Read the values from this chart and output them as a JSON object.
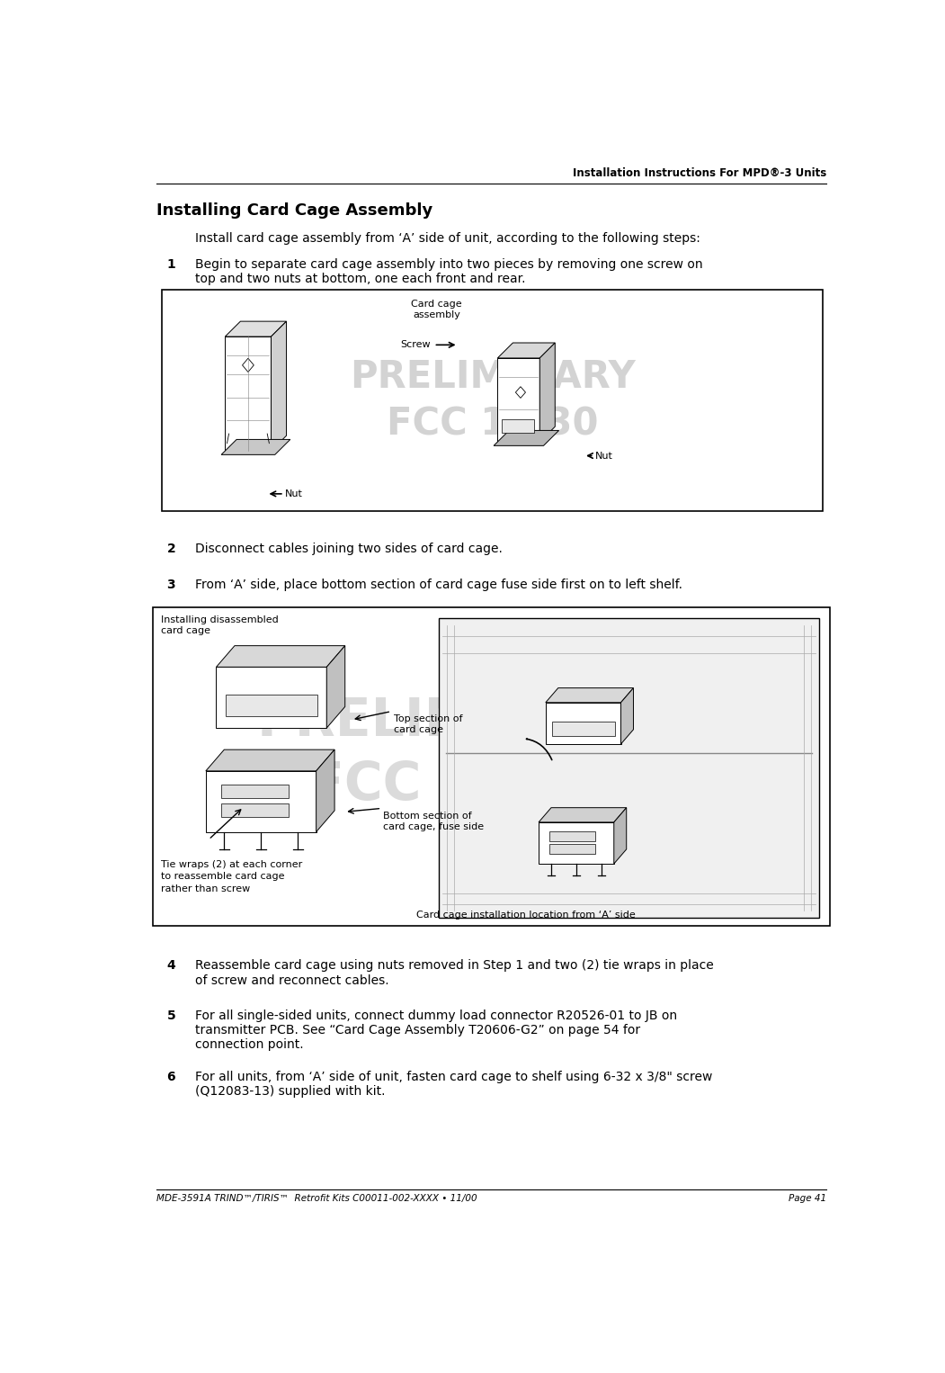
{
  "page_width": 10.51,
  "page_height": 15.26,
  "dpi": 100,
  "bg_color": "#ffffff",
  "header_text": "Installation Instructions For MPD®-3 Units",
  "footer_left": "MDE-3591A TRIND™/TIRIS™  Retrofit Kits C00011-002-XXXX • 11/00",
  "footer_right": "Page 41",
  "section_title": "Installing Card Cage Assembly",
  "intro_text": "Install card cage assembly from ‘A’ side of unit, according to the following steps:",
  "step1_num": "1",
  "step1_text": "Begin to separate card cage assembly into two pieces by removing one screw on\ntop and two nuts at bottom, one each front and rear.",
  "step2_num": "2",
  "step2_text": "Disconnect cables joining two sides of card cage.",
  "step3_num": "3",
  "step3_text": "From ‘A’ side, place bottom section of card cage fuse side first on to left shelf.",
  "step4_num": "4",
  "step4_text": "Reassemble card cage using nuts removed in Step 1 and two (2) tie wraps in place\nof screw and reconnect cables.",
  "step5_num": "5",
  "step5_text": "For all single-sided units, connect dummy load connector R20526-01 to JB on\ntransmitter PCB. See “Card Cage Assembly T20606-G2” on page 54 for\nconnection point.",
  "step6_num": "6",
  "step6_text": "For all units, from ‘A’ side of unit, fasten card cage to shelf using 6-32 x 3/8\" screw\n(Q12083-13) supplied with kit.",
  "fig1_label_card_cage": "Card cage\nassembly",
  "fig1_label_screw": "Screw",
  "fig1_label_nut_left": "Nut",
  "fig1_label_nut_right": "Nut",
  "fig2_label_installing": "Installing disassembled\ncard cage",
  "fig2_label_top_section": "Top section of\ncard cage",
  "fig2_label_bottom_section": "Bottom section of\ncard cage, fuse side",
  "fig2_label_tie_wraps": "Tie wraps (2) at each corner\nto reassemble card cage\nrather than screw",
  "fig2_label_location": "Card cage installation location from ‘A’ side",
  "preliminary_color": "#b0b0b0",
  "text_color": "#000000",
  "header_fontsize": 8.5,
  "footer_fontsize": 7.5,
  "title_fontsize": 13,
  "body_fontsize": 10,
  "label_fontsize": 8,
  "step_fontsize": 10
}
